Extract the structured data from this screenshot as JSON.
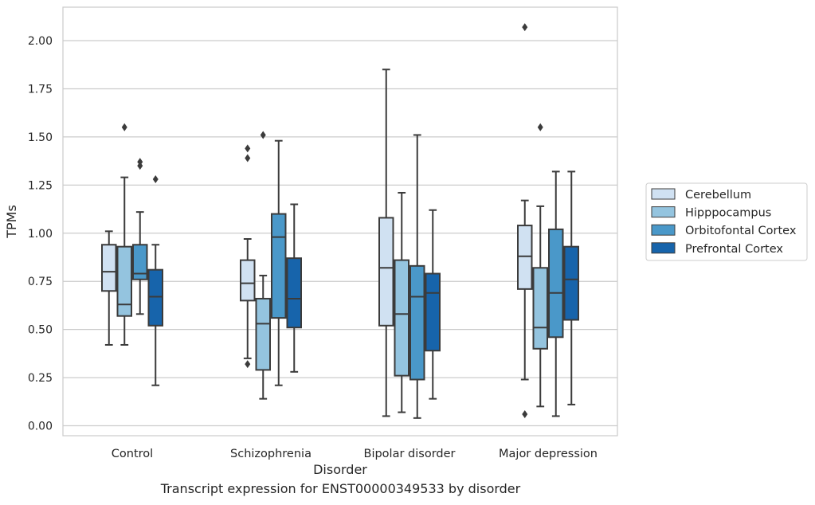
{
  "caption": "Transcript expression for ENST00000349533 by disorder",
  "chart_data": {
    "type": "box",
    "title": "",
    "xlabel": "Disorder",
    "ylabel": "TPMs",
    "ylim": [
      -0.06,
      2.18
    ],
    "yticks": [
      0.0,
      0.25,
      0.5,
      0.75,
      1.0,
      1.25,
      1.5,
      1.75,
      2.0
    ],
    "ytick_labels": [
      "0.00",
      "0.25",
      "0.50",
      "0.75",
      "1.00",
      "1.25",
      "1.50",
      "1.75",
      "2.00"
    ],
    "grid": "horizontal",
    "legend_position": "right",
    "categories": [
      "Control",
      "Schizophrenia",
      "Bipolar disorder",
      "Major depression"
    ],
    "series": [
      {
        "name": "Cerebellum",
        "color": "#d0e1f2",
        "boxes": [
          {
            "whislo": 0.42,
            "q1": 0.7,
            "med": 0.8,
            "q3": 0.94,
            "whishi": 1.01,
            "fliers": []
          },
          {
            "whislo": 0.35,
            "q1": 0.65,
            "med": 0.74,
            "q3": 0.86,
            "whishi": 0.97,
            "fliers": [
              0.32,
              1.39,
              1.44
            ]
          },
          {
            "whislo": 0.05,
            "q1": 0.52,
            "med": 0.82,
            "q3": 1.08,
            "whishi": 1.85,
            "fliers": []
          },
          {
            "whislo": 0.24,
            "q1": 0.71,
            "med": 0.88,
            "q3": 1.04,
            "whishi": 1.17,
            "fliers": [
              0.06,
              2.07
            ]
          }
        ]
      },
      {
        "name": "Hipppocampus",
        "color": "#94c4df",
        "boxes": [
          {
            "whislo": 0.42,
            "q1": 0.57,
            "med": 0.63,
            "q3": 0.93,
            "whishi": 1.29,
            "fliers": [
              1.55
            ]
          },
          {
            "whislo": 0.14,
            "q1": 0.29,
            "med": 0.53,
            "q3": 0.66,
            "whishi": 0.78,
            "fliers": [
              1.51
            ]
          },
          {
            "whislo": 0.07,
            "q1": 0.26,
            "med": 0.58,
            "q3": 0.86,
            "whishi": 1.21,
            "fliers": []
          },
          {
            "whislo": 0.1,
            "q1": 0.4,
            "med": 0.51,
            "q3": 0.82,
            "whishi": 1.14,
            "fliers": [
              1.55
            ]
          }
        ]
      },
      {
        "name": "Orbitofontal Cortex",
        "color": "#4a98c9",
        "boxes": [
          {
            "whislo": 0.58,
            "q1": 0.76,
            "med": 0.79,
            "q3": 0.94,
            "whishi": 1.11,
            "fliers": [
              1.35,
              1.37
            ]
          },
          {
            "whislo": 0.21,
            "q1": 0.56,
            "med": 0.98,
            "q3": 1.1,
            "whishi": 1.48,
            "fliers": []
          },
          {
            "whislo": 0.04,
            "q1": 0.24,
            "med": 0.67,
            "q3": 0.83,
            "whishi": 1.51,
            "fliers": []
          },
          {
            "whislo": 0.05,
            "q1": 0.46,
            "med": 0.69,
            "q3": 1.02,
            "whishi": 1.32,
            "fliers": []
          }
        ]
      },
      {
        "name": "Prefrontal Cortex",
        "color": "#1764ab",
        "boxes": [
          {
            "whislo": 0.21,
            "q1": 0.52,
            "med": 0.67,
            "q3": 0.81,
            "whishi": 0.94,
            "fliers": [
              1.28
            ]
          },
          {
            "whislo": 0.28,
            "q1": 0.51,
            "med": 0.66,
            "q3": 0.87,
            "whishi": 1.15,
            "fliers": []
          },
          {
            "whislo": 0.14,
            "q1": 0.39,
            "med": 0.69,
            "q3": 0.79,
            "whishi": 1.12,
            "fliers": []
          },
          {
            "whislo": 0.11,
            "q1": 0.55,
            "med": 0.76,
            "q3": 0.93,
            "whishi": 1.32,
            "fliers": []
          }
        ]
      }
    ]
  }
}
